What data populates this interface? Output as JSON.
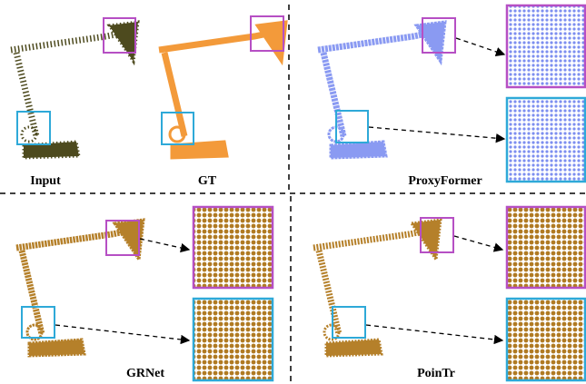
{
  "labels": {
    "input": "Input",
    "gt": "GT",
    "proxyformer": "ProxyFormer",
    "grnet": "GRNet",
    "poinTr": "PoinTr"
  }
}
